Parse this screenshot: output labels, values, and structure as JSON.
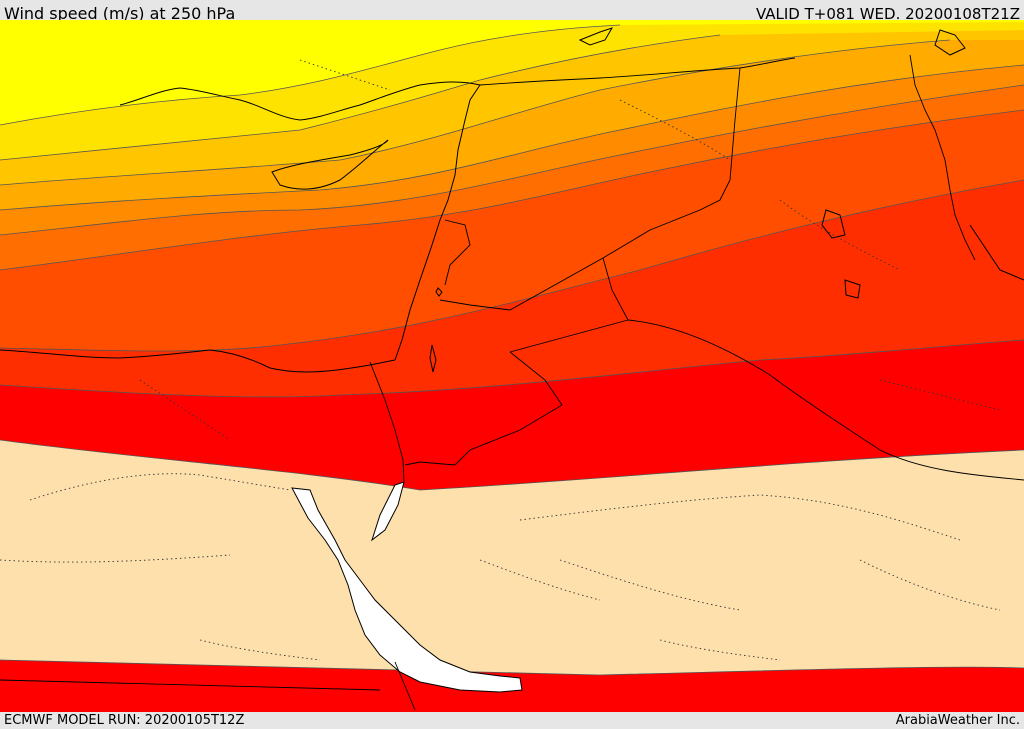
{
  "header": {
    "title": "Wind speed (m/s) at 250 hPa",
    "valid": "VALID T+081 WED. 20200108T21Z"
  },
  "footer": {
    "model_run": "ECMWF MODEL RUN: 20200105T12Z",
    "credit": "ArabiaWeather Inc."
  },
  "map": {
    "band_colors": [
      "#ffff00",
      "#ffe300",
      "#ffc600",
      "#ffab00",
      "#ff8c00",
      "#ff6e00",
      "#ff4e00",
      "#ff2e00",
      "#ff0000",
      "#fde0ac",
      "#ffffff"
    ],
    "sea_color": "#ffffff",
    "land_low_color": "#fde0ac"
  }
}
